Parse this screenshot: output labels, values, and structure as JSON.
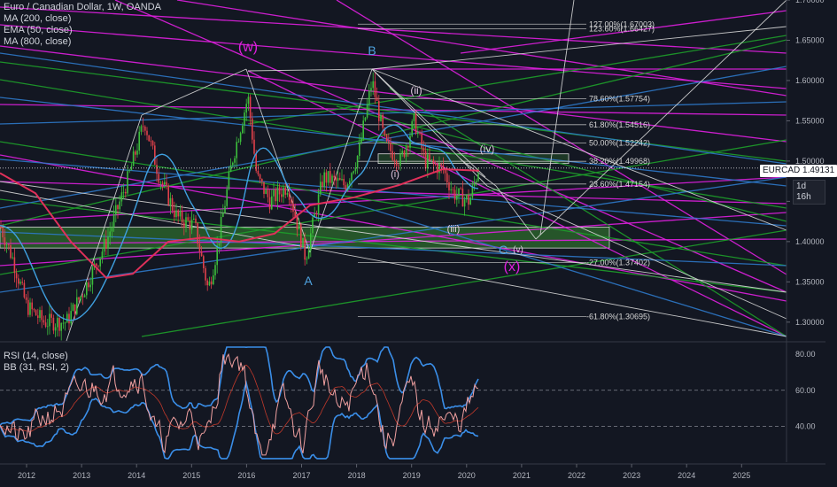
{
  "legend": {
    "title": "Euro / Canadian Dollar, 1W, OANDA",
    "indicators": [
      "MA (200, close)",
      "EMA (50, close)",
      "MA (800, close)"
    ]
  },
  "rsi_legend": {
    "indicators": [
      "RSI (14, close)",
      "BB (31, RSI, 2)"
    ]
  },
  "price_badge": {
    "symbol": "EURCAD",
    "value": "1.49131"
  },
  "time_badge": "1d 16h",
  "colors": {
    "background": "#131722",
    "magenta": "#e01fe0",
    "green": "#1e9e2a",
    "blue": "#2e78c8",
    "white": "#d8d8d8",
    "ma200": "#e0305a",
    "ema50": "#3fa0e0",
    "rsi": "#f0a0a0",
    "bb": "#3a8ee8",
    "zone": "#2e6b2e"
  },
  "chart_data": {
    "type": "line",
    "symbol": "EURCAD",
    "timeframe": "1W",
    "ylim": [
      1.28,
      1.7
    ],
    "y_ticks": [
      "1.70000",
      "1.65000",
      "1.60000",
      "1.55000",
      "1.50000",
      "1.45000",
      "1.40000",
      "1.35000",
      "1.30000"
    ],
    "x_ticks": [
      "2012",
      "2013",
      "2014",
      "2015",
      "2016",
      "2017",
      "2018",
      "2019",
      "2020",
      "2021",
      "2022",
      "2023",
      "2024",
      "2025"
    ],
    "current_price": 1.49131,
    "fib_levels": [
      {
        "label": "127.00%(1.67003)",
        "value": 1.67003
      },
      {
        "label": "123.60%(1.66427)",
        "value": 1.66427
      },
      {
        "label": "78.60%(1.57754)",
        "value": 1.57754
      },
      {
        "label": "61.80%(1.54516)",
        "value": 1.54516
      },
      {
        "label": "50.00%(1.52242)",
        "value": 1.52242
      },
      {
        "label": "38.20%(1.49968)",
        "value": 1.49968
      },
      {
        "label": "23.60%(1.47154)",
        "value": 1.47154
      },
      {
        "label": "-27.00%(1.37402)",
        "value": 1.37402
      },
      {
        "label": "-61.80%(1.30695)",
        "value": 1.30695
      }
    ],
    "wave_labels": [
      "(w)",
      "B",
      "(ii)",
      "(iv)",
      "(i)",
      "(iii)",
      "A",
      "C",
      "(v)",
      "(x)"
    ],
    "rsi": {
      "ylim": [
        20,
        85
      ],
      "y_ticks": [
        "80.00",
        "60.00",
        "40.00"
      ],
      "levels": [
        60,
        40
      ]
    }
  }
}
